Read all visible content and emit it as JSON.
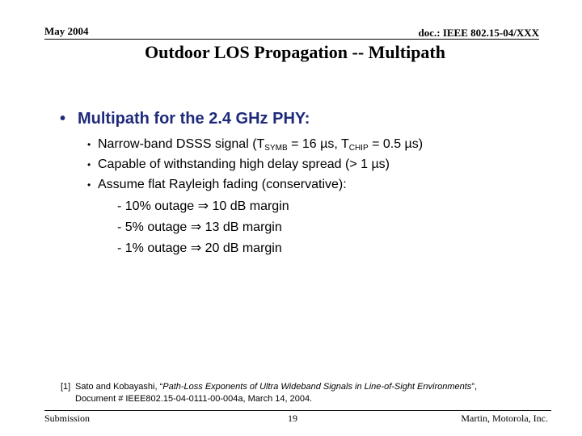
{
  "header": {
    "date": "May 2004",
    "doc_id": "doc.: IEEE 802.15-04/XXX",
    "title": "Outdoor LOS Propagation -- Multipath"
  },
  "main_bullet": {
    "marker": "•",
    "text": "Multipath for the 2.4 GHz PHY:"
  },
  "sub_bullets": {
    "marker": "•",
    "item1": {
      "prefix": "Narrow-band DSSS signal (T",
      "sub_a": "SYMB",
      "mid": " = 16 µs, T",
      "sub_b": "CHIP",
      "suffix": " = 0.5 µs)"
    },
    "item2": "Capable of withstanding high delay spread (> 1 µs)",
    "item3": "Assume flat Rayleigh fading (conservative):"
  },
  "outage_items": [
    "- 10% outage ⇒ 10 dB margin",
    "- 5% outage ⇒ 13 dB margin",
    "- 1% outage ⇒ 20 dB margin"
  ],
  "footnote": {
    "ref": "[1]",
    "authors": "Sato and Kobayashi, “",
    "title": "Path-Loss Exponents of Ultra Wideband Signals in Line-of-Sight Environments",
    "after_title": "”,",
    "line2": "Document # IEEE802.15-04-0111-00-004a, March 14, 2004."
  },
  "footer": {
    "left": "Submission",
    "page": "19",
    "right": "Martin, Motorola, Inc."
  },
  "colors": {
    "main_bullet": "#1f2a7a",
    "text": "#000000",
    "background": "#ffffff"
  }
}
